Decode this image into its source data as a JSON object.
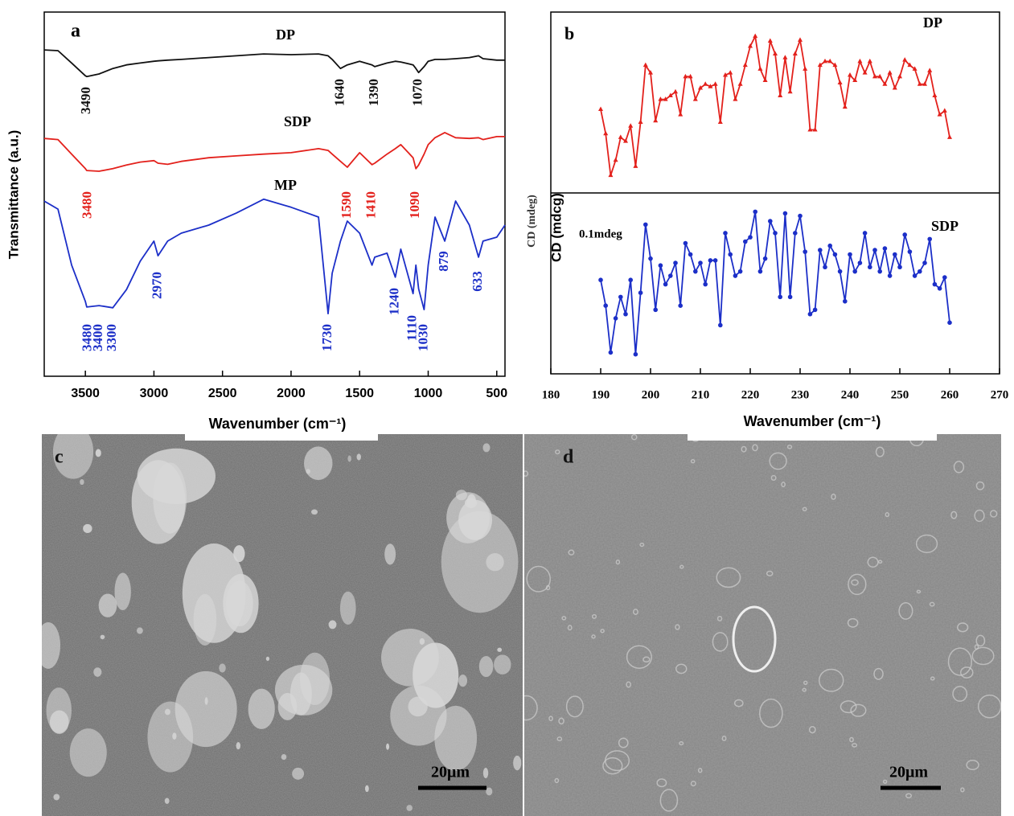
{
  "chart_data": [
    {
      "type": "line",
      "panel_label": "a",
      "x_label": "Wavenumber (cm⁻¹)",
      "y_label": "Transmittance (a.u.)",
      "xlim": [
        3800,
        440
      ],
      "ylim": [
        0,
        100
      ],
      "xticks": [
        3500,
        3000,
        2500,
        2000,
        1500,
        1000,
        500
      ],
      "x": [
        3800,
        3700,
        3600,
        3500,
        3490,
        3400,
        3300,
        3200,
        3100,
        3000,
        2970,
        2900,
        2800,
        2600,
        2400,
        2200,
        2000,
        1800,
        1730,
        1700,
        1640,
        1590,
        1500,
        1410,
        1390,
        1300,
        1240,
        1200,
        1110,
        1090,
        1070,
        1030,
        1000,
        950,
        879,
        800,
        700,
        633,
        600,
        500,
        440
      ],
      "series": [
        {
          "name": "DP",
          "color": "#111111",
          "peak_labels": [
            "3490",
            "1640",
            "1390",
            "1070"
          ],
          "values": [
            89.6,
            89.4,
            86,
            82.5,
            82.3,
            83,
            84.5,
            85.5,
            86,
            86.5,
            86.6,
            86.8,
            87,
            87.5,
            88,
            88.5,
            88.3,
            88.5,
            88,
            87,
            84.5,
            85.5,
            86.5,
            85.5,
            85,
            86,
            86.5,
            86.3,
            85.5,
            84.5,
            83.4,
            85,
            86.5,
            87,
            87,
            87.2,
            87.5,
            88,
            87.2,
            86.8,
            86.8
          ]
        },
        {
          "name": "SDP",
          "color": "#e3211c",
          "peak_labels": [
            "3480",
            "1590",
            "1410",
            "1090"
          ],
          "values": [
            65.3,
            65,
            61,
            57,
            56.5,
            56.3,
            57,
            58,
            58.8,
            59.2,
            58.5,
            58.2,
            59,
            60,
            60.5,
            61,
            61.4,
            62.5,
            62,
            61,
            59,
            57.4,
            61.4,
            58.1,
            58.5,
            61,
            62.5,
            63.6,
            60,
            57,
            58,
            61,
            63.6,
            65.5,
            66.9,
            65.5,
            65.3,
            65.5,
            65,
            65.8,
            65.8
          ]
        },
        {
          "name": "MP",
          "color": "#1c2fc8",
          "peak_labels": [
            "3480",
            "3400",
            "3300",
            "2970",
            "1730",
            "1240",
            "1110",
            "1030",
            "879",
            "633"
          ],
          "values": [
            48.1,
            45.9,
            30.5,
            20.5,
            19,
            19.4,
            18.8,
            23.8,
            31.6,
            37.1,
            33.1,
            37.1,
            39.3,
            41.5,
            44.8,
            48.6,
            46.4,
            43.7,
            17.2,
            28.3,
            37.1,
            42.6,
            39.3,
            30.5,
            32.7,
            33.8,
            27.2,
            34.9,
            22.7,
            30.5,
            24,
            18.3,
            30.5,
            43.7,
            37.1,
            48.1,
            41.5,
            32.7,
            37.1,
            38.2,
            41.5
          ]
        }
      ]
    },
    {
      "type": "line",
      "panel_label": "b",
      "x_label": "Wavenumber (cm⁻¹)",
      "y_label": "CD (mdcg)",
      "y_label_behind": "CD (mdeg)",
      "annotation": "0.1mdeg",
      "stacked_panels": true,
      "xlim": [
        180,
        270
      ],
      "ylim": [
        0,
        100
      ],
      "xticks": [
        180,
        190,
        200,
        210,
        220,
        230,
        240,
        250,
        260,
        270
      ],
      "x": [
        190,
        191,
        192,
        193,
        194,
        195,
        196,
        197,
        198,
        199,
        200,
        201,
        202,
        203,
        204,
        205,
        206,
        207,
        208,
        209,
        210,
        211,
        212,
        213,
        214,
        215,
        216,
        217,
        218,
        219,
        220,
        221,
        222,
        223,
        224,
        225,
        226,
        227,
        228,
        229,
        230,
        231,
        232,
        233,
        234,
        235,
        236,
        237,
        238,
        239,
        240,
        241,
        242,
        243,
        244,
        245,
        246,
        247,
        248,
        249,
        250,
        251,
        252,
        253,
        254,
        255,
        256,
        257,
        258,
        259,
        260
      ],
      "series": [
        {
          "name": "DP",
          "color": "#e3211c",
          "marker": "triangle",
          "values": [
            46.2,
            32.8,
            9.7,
            18.1,
            30.7,
            28.6,
            37,
            14.7,
            39.1,
            70.6,
            66.4,
            39.9,
            51.7,
            51.7,
            53.8,
            55.9,
            43.3,
            64.3,
            64.3,
            51.7,
            58,
            60.1,
            58.8,
            60.1,
            39.1,
            65.1,
            66.4,
            51.7,
            60.1,
            70.6,
            81.1,
            86.6,
            68.5,
            62.2,
            84,
            76.9,
            53.8,
            74.8,
            55.9,
            76.9,
            84.5,
            68.5,
            34.9,
            34.9,
            70.6,
            72.7,
            72.7,
            70.6,
            60.9,
            47.5,
            65.1,
            62.2,
            72.7,
            66.4,
            72.7,
            64.3,
            64.3,
            60.1,
            66.4,
            58,
            64.3,
            73.5,
            70.6,
            68.5,
            60.1,
            60.1,
            67.6,
            53.8,
            43.3,
            45.4,
            30.7
          ]
        },
        {
          "name": "SDP",
          "color": "#1c2fc8",
          "marker": "circle",
          "values": [
            51.9,
            37.7,
            11.8,
            30.7,
            42.5,
            33,
            51.9,
            10.8,
            44.8,
            82.5,
            63.7,
            35.4,
            59.9,
            49.5,
            54.2,
            61.3,
            37.7,
            72.2,
            66,
            56.6,
            61.3,
            49.5,
            62.7,
            62.7,
            26.9,
            77.8,
            66,
            54.2,
            56.6,
            73.1,
            75.5,
            89.6,
            56.6,
            63.7,
            84.4,
            77.8,
            42.5,
            88.7,
            42.5,
            77.8,
            87.3,
            67.5,
            33,
            35.4,
            68.4,
            59,
            70.8,
            66,
            56.6,
            40.1,
            66,
            56.6,
            61.3,
            77.8,
            59,
            68.4,
            56.6,
            69.3,
            54.2,
            66,
            59,
            76.9,
            67.5,
            54.2,
            56.6,
            61.3,
            74.5,
            49.5,
            47.2,
            53.3,
            28.3
          ]
        }
      ]
    }
  ],
  "images": [
    {
      "panel_label": "c",
      "scale_bar": "20μm"
    },
    {
      "panel_label": "d",
      "scale_bar": "20μm"
    }
  ]
}
